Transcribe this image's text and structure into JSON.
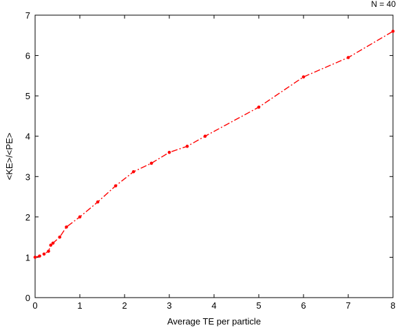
{
  "chart_data": {
    "type": "line",
    "title": "",
    "annotation": "N = 40",
    "xlabel": "Average TE per particle",
    "ylabel": "<KE>/<PE>",
    "xlim": [
      0,
      8
    ],
    "ylim": [
      0,
      7
    ],
    "xticks": [
      0,
      1,
      2,
      3,
      4,
      5,
      6,
      7,
      8
    ],
    "yticks": [
      0,
      1,
      2,
      3,
      4,
      5,
      6,
      7
    ],
    "grid": false,
    "legend": "none",
    "series": [
      {
        "color": "#ff0000",
        "line_style": "dash-dot",
        "marker": "dot",
        "x": [
          0.0,
          0.1,
          0.2,
          0.3,
          0.35,
          0.4,
          0.55,
          0.7,
          1.0,
          1.4,
          1.8,
          2.2,
          2.6,
          3.0,
          3.4,
          3.8,
          5.0,
          6.0,
          7.0,
          8.0
        ],
        "y": [
          1.0,
          1.03,
          1.08,
          1.15,
          1.3,
          1.35,
          1.5,
          1.75,
          2.0,
          2.37,
          2.77,
          3.12,
          3.33,
          3.6,
          3.75,
          4.0,
          4.72,
          5.47,
          5.95,
          6.6
        ]
      }
    ]
  }
}
